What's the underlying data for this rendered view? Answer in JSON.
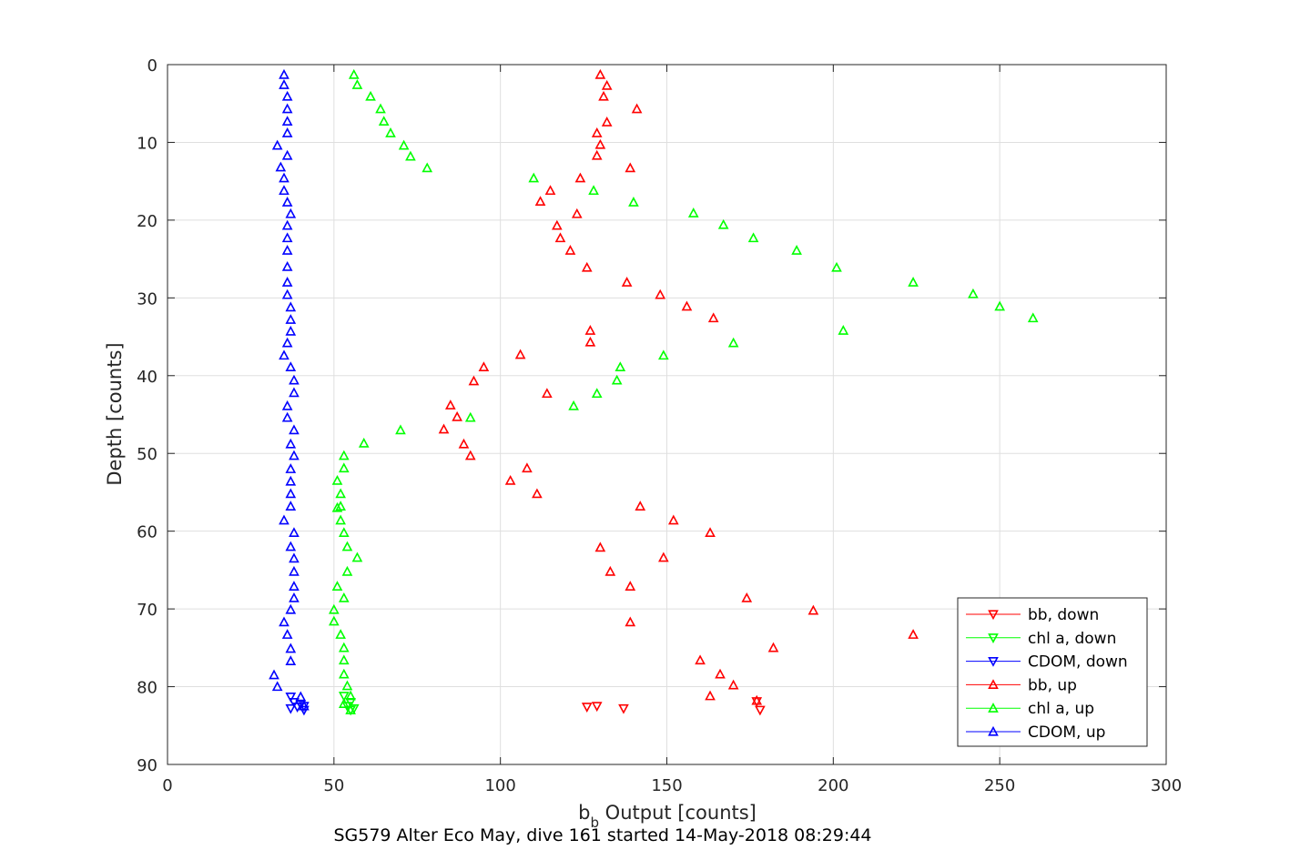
{
  "caption": "SG579 Alter Eco May, dive 161 started 14-May-2018 08:29:44",
  "chart_data": {
    "type": "scatter",
    "xlabel_main": "b",
    "xlabel_sub": "b",
    "xlabel_rest": " Output [counts]",
    "ylabel": "Depth [counts]",
    "xlim": [
      0,
      300
    ],
    "ylim": [
      0,
      90
    ],
    "y_reversed": true,
    "xticks": [
      0,
      50,
      100,
      150,
      200,
      250,
      300
    ],
    "yticks": [
      0,
      10,
      20,
      30,
      40,
      50,
      60,
      70,
      80,
      90
    ],
    "grid": true,
    "legend_position": "bottom-right",
    "series": [
      {
        "name": "bb, down",
        "color": "#ff0000",
        "marker": "triangle-down",
        "points": [
          [
            129,
            82.5
          ],
          [
            137,
            82.8
          ],
          [
            178,
            83.0
          ],
          [
            126,
            82.6
          ],
          [
            177,
            81.9
          ]
        ]
      },
      {
        "name": "chl a, down",
        "color": "#00ff00",
        "marker": "triangle-down",
        "points": [
          [
            53,
            81.2
          ],
          [
            55,
            82.0
          ],
          [
            54,
            82.5
          ],
          [
            55,
            83.0
          ],
          [
            56,
            82.8
          ]
        ]
      },
      {
        "name": "CDOM, down",
        "color": "#0000ff",
        "marker": "triangle-down",
        "points": [
          [
            37,
            81.3
          ],
          [
            38,
            82.0
          ],
          [
            40,
            82.3
          ],
          [
            41,
            83.0
          ],
          [
            39,
            82.6
          ],
          [
            37,
            82.8
          ],
          [
            41,
            82.5
          ]
        ]
      },
      {
        "name": "bb, up",
        "color": "#ff0000",
        "marker": "triangle-up",
        "points": [
          [
            130,
            1.3
          ],
          [
            132,
            2.7
          ],
          [
            131,
            4.1
          ],
          [
            141,
            5.7
          ],
          [
            132,
            7.4
          ],
          [
            129,
            8.8
          ],
          [
            130,
            10.3
          ],
          [
            129,
            11.7
          ],
          [
            139,
            13.3
          ],
          [
            124,
            14.6
          ],
          [
            115,
            16.2
          ],
          [
            112,
            17.6
          ],
          [
            123,
            19.2
          ],
          [
            117,
            20.7
          ],
          [
            118,
            22.3
          ],
          [
            121,
            23.9
          ],
          [
            126,
            26.1
          ],
          [
            138,
            28.0
          ],
          [
            148,
            29.6
          ],
          [
            156,
            31.1
          ],
          [
            164,
            32.6
          ],
          [
            127,
            34.2
          ],
          [
            127,
            35.7
          ],
          [
            106,
            37.3
          ],
          [
            95,
            38.9
          ],
          [
            92,
            40.7
          ],
          [
            114,
            42.3
          ],
          [
            85,
            43.8
          ],
          [
            87,
            45.3
          ],
          [
            83,
            46.9
          ],
          [
            89,
            48.8
          ],
          [
            91,
            50.3
          ],
          [
            108,
            51.9
          ],
          [
            103,
            53.5
          ],
          [
            111,
            55.2
          ],
          [
            142,
            56.8
          ],
          [
            152,
            58.6
          ],
          [
            163,
            60.2
          ],
          [
            130,
            62.1
          ],
          [
            149,
            63.4
          ],
          [
            133,
            65.2
          ],
          [
            139,
            67.1
          ],
          [
            174,
            68.6
          ],
          [
            194,
            70.2
          ],
          [
            139,
            71.7
          ],
          [
            224,
            73.3
          ],
          [
            182,
            75.0
          ],
          [
            160,
            76.6
          ],
          [
            166,
            78.4
          ],
          [
            170,
            79.8
          ],
          [
            163,
            81.2
          ],
          [
            177,
            81.8
          ]
        ]
      },
      {
        "name": "chl a, up",
        "color": "#00ff00",
        "marker": "triangle-up",
        "points": [
          [
            56,
            1.3
          ],
          [
            57,
            2.6
          ],
          [
            61,
            4.1
          ],
          [
            64,
            5.7
          ],
          [
            65,
            7.3
          ],
          [
            67,
            8.8
          ],
          [
            71,
            10.4
          ],
          [
            73,
            11.8
          ],
          [
            78,
            13.3
          ],
          [
            110,
            14.6
          ],
          [
            128,
            16.2
          ],
          [
            140,
            17.7
          ],
          [
            158,
            19.1
          ],
          [
            167,
            20.6
          ],
          [
            176,
            22.3
          ],
          [
            189,
            23.9
          ],
          [
            201,
            26.1
          ],
          [
            224,
            28.0
          ],
          [
            242,
            29.5
          ],
          [
            250,
            31.1
          ],
          [
            260,
            32.6
          ],
          [
            203,
            34.2
          ],
          [
            170,
            35.8
          ],
          [
            149,
            37.4
          ],
          [
            136,
            38.9
          ],
          [
            135,
            40.6
          ],
          [
            129,
            42.3
          ],
          [
            122,
            43.9
          ],
          [
            91,
            45.4
          ],
          [
            70,
            47.0
          ],
          [
            59,
            48.7
          ],
          [
            53,
            50.3
          ],
          [
            53,
            51.9
          ],
          [
            51,
            53.5
          ],
          [
            52,
            55.2
          ],
          [
            52,
            56.8
          ],
          [
            51,
            57.0
          ],
          [
            52,
            58.6
          ],
          [
            53,
            60.2
          ],
          [
            54,
            62.0
          ],
          [
            57,
            63.4
          ],
          [
            54,
            65.2
          ],
          [
            51,
            67.1
          ],
          [
            53,
            68.6
          ],
          [
            50,
            70.1
          ],
          [
            50,
            71.6
          ],
          [
            52,
            73.3
          ],
          [
            53,
            75.0
          ],
          [
            53,
            76.6
          ],
          [
            53,
            78.4
          ],
          [
            54,
            79.9
          ],
          [
            55,
            81.2
          ],
          [
            53,
            82.2
          ],
          [
            55,
            83.0
          ]
        ]
      },
      {
        "name": "CDOM, up",
        "color": "#0000ff",
        "marker": "triangle-up",
        "points": [
          [
            35,
            1.3
          ],
          [
            35,
            2.6
          ],
          [
            36,
            4.1
          ],
          [
            36,
            5.7
          ],
          [
            36,
            7.3
          ],
          [
            36,
            8.8
          ],
          [
            33,
            10.4
          ],
          [
            36,
            11.7
          ],
          [
            34,
            13.2
          ],
          [
            35,
            14.6
          ],
          [
            35,
            16.2
          ],
          [
            36,
            17.7
          ],
          [
            37,
            19.2
          ],
          [
            36,
            20.7
          ],
          [
            36,
            22.3
          ],
          [
            36,
            23.9
          ],
          [
            36,
            26.0
          ],
          [
            36,
            28.0
          ],
          [
            36,
            29.6
          ],
          [
            37,
            31.2
          ],
          [
            37,
            32.8
          ],
          [
            37,
            34.3
          ],
          [
            36,
            35.8
          ],
          [
            35,
            37.4
          ],
          [
            37,
            38.9
          ],
          [
            38,
            40.6
          ],
          [
            38,
            42.2
          ],
          [
            36,
            43.9
          ],
          [
            36,
            45.4
          ],
          [
            38,
            47.0
          ],
          [
            37,
            48.8
          ],
          [
            38,
            50.3
          ],
          [
            37,
            52.0
          ],
          [
            37,
            53.6
          ],
          [
            37,
            55.2
          ],
          [
            37,
            56.8
          ],
          [
            35,
            58.6
          ],
          [
            38,
            60.2
          ],
          [
            37,
            62.0
          ],
          [
            38,
            63.5
          ],
          [
            38,
            65.2
          ],
          [
            38,
            67.1
          ],
          [
            38,
            68.6
          ],
          [
            37,
            70.1
          ],
          [
            35,
            71.7
          ],
          [
            36,
            73.3
          ],
          [
            37,
            75.1
          ],
          [
            37,
            76.7
          ],
          [
            32,
            78.5
          ],
          [
            33,
            80.0
          ],
          [
            40,
            81.3
          ],
          [
            41,
            82.5
          ]
        ]
      }
    ]
  }
}
